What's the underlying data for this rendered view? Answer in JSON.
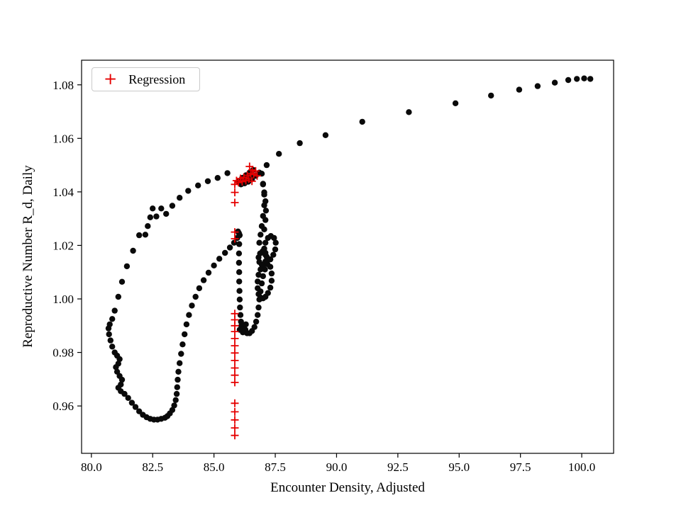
{
  "chart_data": {
    "type": "scatter",
    "title": "",
    "xlabel": "Encounter Density, Adjusted",
    "ylabel": "Reproductive Number R_d, Daily",
    "xlim": [
      79.6,
      101.3
    ],
    "ylim": [
      0.9423,
      1.0892
    ],
    "grid": false,
    "xticks": {
      "values": [
        80.0,
        82.5,
        85.0,
        87.5,
        90.0,
        92.5,
        95.0,
        97.5,
        100.0
      ],
      "labels": [
        "80.0",
        "82.5",
        "85.0",
        "87.5",
        "90.0",
        "92.5",
        "95.0",
        "97.5",
        "100.0"
      ]
    },
    "yticks": {
      "values": [
        0.96,
        0.98,
        1.0,
        1.02,
        1.04,
        1.06,
        1.08
      ],
      "labels": [
        "0.96",
        "0.98",
        "1.00",
        "1.02",
        "1.04",
        "1.06",
        "1.08"
      ]
    },
    "legend": {
      "position": "upper-left",
      "entries": [
        {
          "label": "Regression",
          "marker": "plus",
          "color": "#e50000"
        }
      ]
    },
    "series": [
      {
        "name": "trajectory",
        "marker": "circle",
        "color": "#0a0a0a",
        "points": [
          [
            100.35,
            1.0822
          ],
          [
            100.1,
            1.0824
          ],
          [
            99.8,
            1.0822
          ],
          [
            99.45,
            1.0818
          ],
          [
            98.9,
            1.0808
          ],
          [
            98.2,
            1.0795
          ],
          [
            97.45,
            1.0782
          ],
          [
            96.3,
            1.076
          ],
          [
            94.85,
            1.0731
          ],
          [
            92.95,
            1.0698
          ],
          [
            91.05,
            1.0662
          ],
          [
            89.55,
            1.0612
          ],
          [
            88.5,
            1.0582
          ],
          [
            87.65,
            1.0542
          ],
          [
            87.15,
            1.05
          ],
          [
            86.85,
            1.0472
          ],
          [
            86.7,
            1.046
          ],
          [
            86.55,
            1.0448
          ],
          [
            86.4,
            1.0438
          ],
          [
            86.25,
            1.0432
          ],
          [
            86.1,
            1.0428
          ],
          [
            86.0,
            1.0438
          ],
          [
            86.15,
            1.0452
          ],
          [
            86.3,
            1.0462
          ],
          [
            86.45,
            1.0472
          ],
          [
            86.6,
            1.0482
          ],
          [
            86.5,
            1.0455
          ],
          [
            86.35,
            1.0448
          ],
          [
            86.95,
            1.0468
          ],
          [
            87.0,
            1.043
          ],
          [
            87.05,
            1.039
          ],
          [
            87.05,
            1.035
          ],
          [
            87.0,
            1.031
          ],
          [
            86.95,
            1.0272
          ],
          [
            86.9,
            1.024
          ],
          [
            86.85,
            1.021
          ],
          [
            87.05,
            1.026
          ],
          [
            87.1,
            1.0295
          ],
          [
            87.12,
            1.033
          ],
          [
            87.1,
            1.0365
          ],
          [
            87.05,
            1.0398
          ],
          [
            87.0,
            1.0428
          ],
          [
            85.55,
            1.047
          ],
          [
            85.15,
            1.0452
          ],
          [
            84.75,
            1.044
          ],
          [
            84.35,
            1.0424
          ],
          [
            83.95,
            1.0404
          ],
          [
            83.6,
            1.0378
          ],
          [
            83.3,
            1.0348
          ],
          [
            83.05,
            1.0318
          ],
          [
            82.85,
            1.0338
          ],
          [
            82.65,
            1.0308
          ],
          [
            82.5,
            1.0338
          ],
          [
            82.4,
            1.0305
          ],
          [
            82.3,
            1.0272
          ],
          [
            82.2,
            1.024
          ],
          [
            81.95,
            1.0238
          ],
          [
            81.7,
            1.018
          ],
          [
            81.45,
            1.0122
          ],
          [
            81.25,
            1.0064
          ],
          [
            81.1,
            1.0008
          ],
          [
            80.95,
            0.9956
          ],
          [
            80.85,
            0.9925
          ],
          [
            80.75,
            0.9905
          ],
          [
            80.7,
            0.989
          ],
          [
            80.72,
            0.9868
          ],
          [
            80.78,
            0.9845
          ],
          [
            80.85,
            0.9822
          ],
          [
            80.95,
            0.98
          ],
          [
            81.05,
            0.9788
          ],
          [
            81.15,
            0.9775
          ],
          [
            81.1,
            0.9758
          ],
          [
            81.0,
            0.9745
          ],
          [
            81.05,
            0.9728
          ],
          [
            81.15,
            0.9712
          ],
          [
            81.25,
            0.9698
          ],
          [
            81.2,
            0.968
          ],
          [
            81.1,
            0.9668
          ],
          [
            81.2,
            0.9655
          ],
          [
            81.35,
            0.9645
          ],
          [
            81.5,
            0.963
          ],
          [
            81.65,
            0.9612
          ],
          [
            81.8,
            0.9596
          ],
          [
            81.95,
            0.958
          ],
          [
            82.1,
            0.9567
          ],
          [
            82.25,
            0.9558
          ],
          [
            82.4,
            0.9552
          ],
          [
            82.55,
            0.9549
          ],
          [
            82.7,
            0.9549
          ],
          [
            82.85,
            0.9552
          ],
          [
            83.0,
            0.9556
          ],
          [
            83.1,
            0.9562
          ],
          [
            83.2,
            0.9572
          ],
          [
            83.3,
            0.9585
          ],
          [
            83.38,
            0.9602
          ],
          [
            83.44,
            0.9622
          ],
          [
            83.48,
            0.9645
          ],
          [
            83.5,
            0.967
          ],
          [
            83.52,
            0.9698
          ],
          [
            83.55,
            0.9728
          ],
          [
            83.6,
            0.976
          ],
          [
            83.66,
            0.9795
          ],
          [
            83.72,
            0.983
          ],
          [
            83.8,
            0.9868
          ],
          [
            83.88,
            0.9905
          ],
          [
            83.98,
            0.994
          ],
          [
            84.1,
            0.9975
          ],
          [
            84.25,
            1.0008
          ],
          [
            84.4,
            1.004
          ],
          [
            84.58,
            1.007
          ],
          [
            84.78,
            1.0098
          ],
          [
            85.0,
            1.0125
          ],
          [
            85.22,
            1.015
          ],
          [
            85.45,
            1.0172
          ],
          [
            85.65,
            1.0192
          ],
          [
            85.82,
            1.021
          ],
          [
            85.95,
            1.0228
          ],
          [
            86.02,
            1.0245
          ],
          [
            85.98,
            1.0252
          ],
          [
            86.05,
            1.0238
          ],
          [
            86.03,
            1.0205
          ],
          [
            86.02,
            1.017
          ],
          [
            86.02,
            1.0135
          ],
          [
            86.03,
            1.01
          ],
          [
            86.03,
            1.0065
          ],
          [
            86.04,
            1.003
          ],
          [
            86.05,
            0.9998
          ],
          [
            86.06,
            0.9968
          ],
          [
            86.08,
            0.994
          ],
          [
            86.1,
            0.9915
          ],
          [
            86.15,
            0.9895
          ],
          [
            86.25,
            0.988
          ],
          [
            86.35,
            0.9872
          ],
          [
            86.45,
            0.9872
          ],
          [
            86.55,
            0.988
          ],
          [
            86.65,
            0.9895
          ],
          [
            86.72,
            0.9915
          ],
          [
            86.78,
            0.994
          ],
          [
            86.82,
            0.9968
          ],
          [
            86.85,
            0.9998
          ],
          [
            86.9,
            1.0028
          ],
          [
            86.95,
            1.0058
          ],
          [
            87.0,
            1.0085
          ],
          [
            87.08,
            1.011
          ],
          [
            87.18,
            1.013
          ],
          [
            87.3,
            1.0148
          ],
          [
            87.42,
            1.0165
          ],
          [
            87.5,
            1.0185
          ],
          [
            87.52,
            1.021
          ],
          [
            87.45,
            1.0228
          ],
          [
            87.32,
            1.0235
          ],
          [
            87.2,
            1.0228
          ],
          [
            87.1,
            1.021
          ],
          [
            87.05,
            1.0188
          ],
          [
            87.1,
            1.0165
          ],
          [
            87.2,
            1.015
          ],
          [
            87.3,
            1.012
          ],
          [
            87.35,
            1.0095
          ],
          [
            87.35,
            1.0068
          ],
          [
            87.3,
            1.0042
          ],
          [
            87.2,
            1.0022
          ],
          [
            87.1,
            1.0008
          ],
          [
            87.0,
            1.0002
          ],
          [
            86.9,
            1.0005
          ],
          [
            86.82,
            1.0018
          ],
          [
            86.78,
            1.004
          ],
          [
            86.78,
            1.0065
          ],
          [
            86.82,
            1.009
          ],
          [
            86.9,
            1.011
          ],
          [
            87.0,
            1.0125
          ],
          [
            87.1,
            1.014
          ],
          [
            87.15,
            1.0158
          ],
          [
            87.1,
            1.0172
          ],
          [
            86.98,
            1.0178
          ],
          [
            86.88,
            1.017
          ],
          [
            86.82,
            1.0155
          ],
          [
            86.85,
            1.0138
          ],
          [
            86.95,
            1.0128
          ],
          [
            86.12,
            0.99
          ],
          [
            86.2,
            0.989
          ],
          [
            86.28,
            0.9885
          ],
          [
            86.18,
            0.9875
          ],
          [
            86.3,
            0.9905
          ],
          [
            86.05,
            0.9885
          ]
        ]
      },
      {
        "name": "Regression",
        "marker": "plus",
        "color": "#e50000",
        "points": [
          [
            85.85,
            0.949
          ],
          [
            85.85,
            0.9518
          ],
          [
            85.85,
            0.9548
          ],
          [
            85.85,
            0.9578
          ],
          [
            85.85,
            0.961
          ],
          [
            85.85,
            0.9688
          ],
          [
            85.85,
            0.9715
          ],
          [
            85.85,
            0.9742
          ],
          [
            85.85,
            0.977
          ],
          [
            85.85,
            0.9798
          ],
          [
            85.85,
            0.9825
          ],
          [
            85.85,
            0.9852
          ],
          [
            85.85,
            0.9878
          ],
          [
            85.85,
            0.99
          ],
          [
            85.85,
            0.9922
          ],
          [
            85.85,
            0.9945
          ],
          [
            85.85,
            1.0225
          ],
          [
            85.85,
            1.025
          ],
          [
            85.85,
            1.036
          ],
          [
            85.85,
            1.0398
          ],
          [
            85.85,
            1.0428
          ],
          [
            85.92,
            1.0442
          ],
          [
            86.0,
            1.0435
          ],
          [
            86.08,
            1.045
          ],
          [
            86.15,
            1.0438
          ],
          [
            86.22,
            1.0455
          ],
          [
            86.3,
            1.0442
          ],
          [
            86.36,
            1.0462
          ],
          [
            86.42,
            1.0448
          ],
          [
            86.5,
            1.0468
          ],
          [
            86.56,
            1.0482
          ],
          [
            86.62,
            1.0465
          ],
          [
            86.7,
            1.0478
          ],
          [
            86.76,
            1.046
          ],
          [
            86.55,
            1.044
          ],
          [
            86.45,
            1.0495
          ]
        ]
      }
    ]
  }
}
